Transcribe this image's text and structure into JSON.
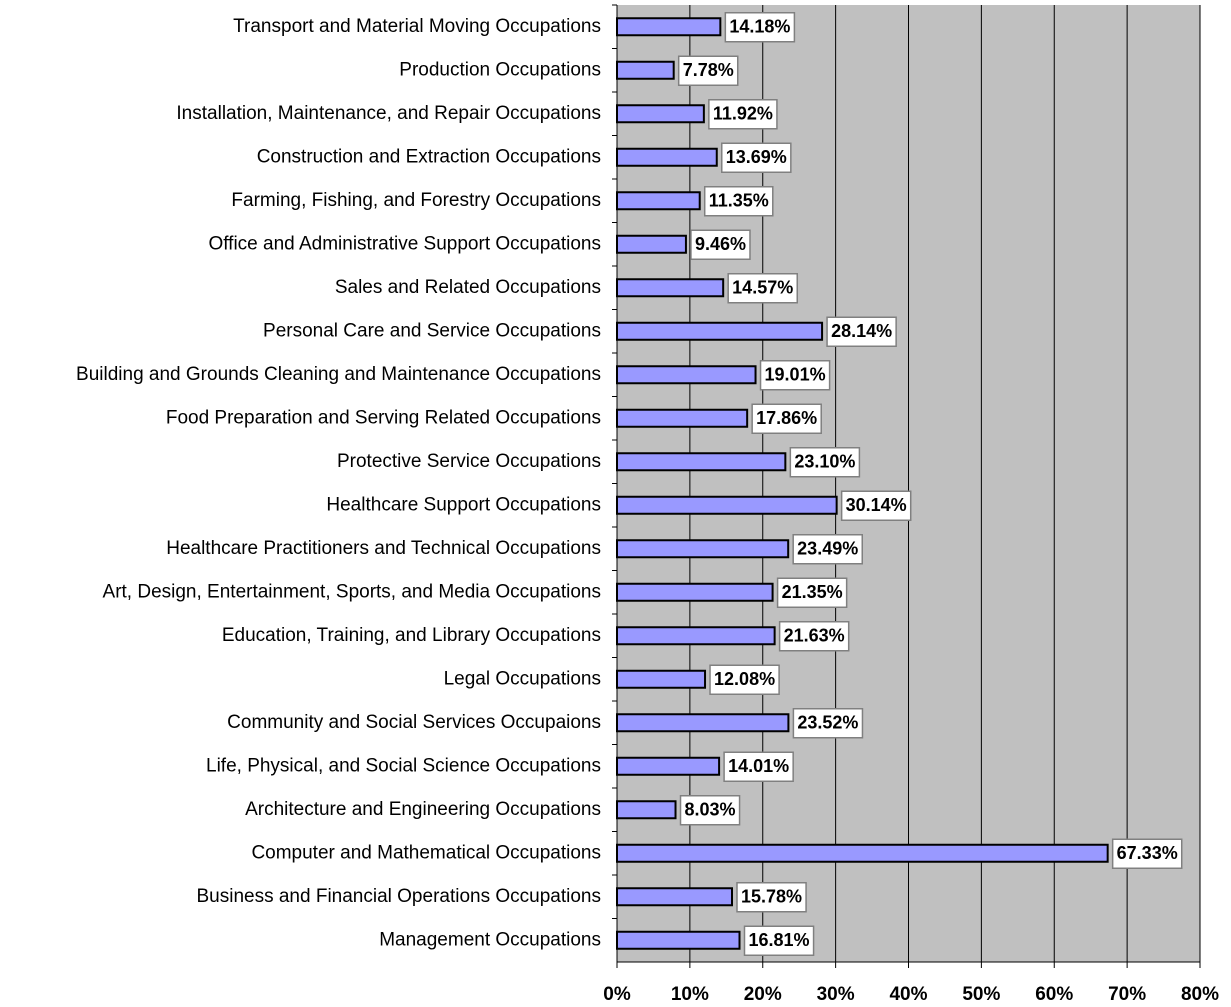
{
  "chart_data": {
    "type": "barh",
    "categories": [
      "Transport and Material Moving Occupations",
      "Production Occupations",
      "Installation, Maintenance, and Repair Occupations",
      "Construction and Extraction Occupations",
      "Farming, Fishing, and Forestry Occupations",
      "Office and Administrative Support Occupations",
      "Sales and Related Occupations",
      "Personal Care and Service Occupations",
      "Building and Grounds Cleaning and Maintenance Occupations",
      "Food Preparation and Serving Related Occupations",
      "Protective  Service Occupations",
      "Healthcare Support Occupations",
      "Healthcare Practitioners and Technical Occupations",
      "Art, Design, Entertainment, Sports, and Media Occupations",
      "Education, Training, and Library Occupations",
      "Legal Occupations",
      "Community and Social Services Occupaions",
      "Life, Physical, and Social Science Occupations",
      "Architecture and Engineering Occupations",
      "Computer and Mathematical Occupations",
      "Business and Financial Operations Occupations",
      "Management Occupations"
    ],
    "values": [
      14.18,
      7.78,
      11.92,
      13.69,
      11.35,
      9.46,
      14.57,
      28.14,
      19.01,
      17.86,
      23.1,
      30.14,
      23.49,
      21.35,
      21.63,
      12.08,
      23.52,
      14.01,
      8.03,
      67.33,
      15.78,
      16.81
    ],
    "value_labels": [
      "14.18%",
      "7.78%",
      "11.92%",
      "13.69%",
      "11.35%",
      "9.46%",
      "14.57%",
      "28.14%",
      "19.01%",
      "17.86%",
      "23.10%",
      "30.14%",
      "23.49%",
      "21.35%",
      "21.63%",
      "12.08%",
      "23.52%",
      "14.01%",
      "8.03%",
      "67.33%",
      "15.78%",
      "16.81%"
    ],
    "color": "#9999ff",
    "xlim": [
      0,
      80
    ],
    "xticks": [
      {
        "value": 0,
        "label": "0%"
      },
      {
        "value": 10,
        "label": "10%"
      },
      {
        "value": 20,
        "label": "20%"
      },
      {
        "value": 30,
        "label": "30%"
      },
      {
        "value": 40,
        "label": "40%"
      },
      {
        "value": 50,
        "label": "50%"
      },
      {
        "value": 60,
        "label": "60%"
      },
      {
        "value": 70,
        "label": "70%"
      },
      {
        "value": 80,
        "label": "80%"
      }
    ],
    "grid": true
  }
}
